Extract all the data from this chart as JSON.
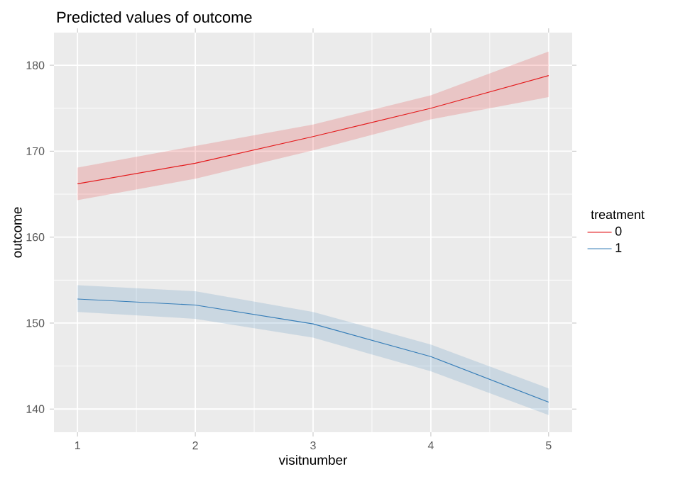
{
  "chart_data": {
    "type": "line",
    "title": "Predicted values of outcome",
    "xlabel": "visitnumber",
    "ylabel": "outcome",
    "legend_title": "treatment",
    "x": [
      1,
      2,
      3,
      4,
      5
    ],
    "series": [
      {
        "name": "0",
        "color": "#e41a1c",
        "values": [
          166.2,
          168.6,
          171.7,
          175.0,
          178.8
        ],
        "lower": [
          164.3,
          166.8,
          170.1,
          173.7,
          176.3
        ],
        "upper": [
          168.1,
          170.6,
          173.1,
          176.5,
          181.6
        ]
      },
      {
        "name": "1",
        "color": "#377eb8",
        "values": [
          152.8,
          152.1,
          149.9,
          146.1,
          140.8
        ],
        "lower": [
          151.3,
          150.5,
          148.3,
          144.4,
          139.3
        ],
        "upper": [
          154.4,
          153.7,
          151.3,
          147.5,
          142.4
        ]
      }
    ],
    "xlim": [
      0.8,
      5.2
    ],
    "ylim": [
      137.3,
      183.8
    ],
    "xticks": [
      1,
      2,
      3,
      4,
      5
    ],
    "yticks": [
      140,
      150,
      160,
      170,
      180
    ],
    "grid": true,
    "legend": "right",
    "line_style": "solid",
    "marker": "none"
  }
}
